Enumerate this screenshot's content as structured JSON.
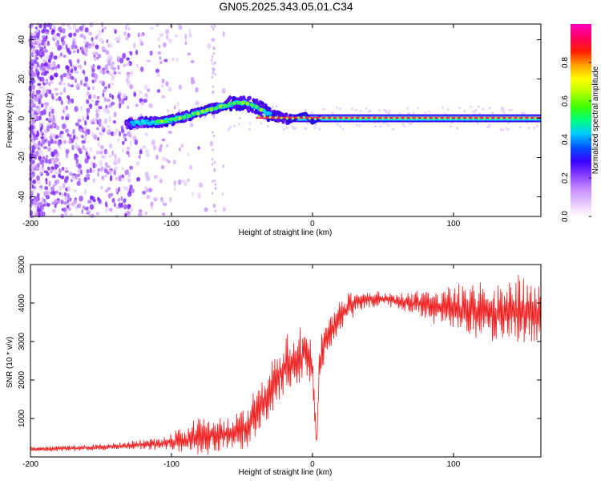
{
  "title": "GN05.2025.343.05.01.C34",
  "chart_data": [
    {
      "type": "heatmap",
      "description_of_series": "spectrogram",
      "xlabel": "Height of straight line (km)",
      "ylabel": "Frequency (Hz)",
      "xlim": [
        -200,
        162
      ],
      "ylim": [
        -50,
        48
      ],
      "xticks": [
        -200,
        -100,
        0,
        100
      ],
      "yticks": [
        -40,
        -20,
        0,
        20,
        40
      ],
      "colorbar": {
        "label": "Normalized spectral amplitude",
        "range": [
          0,
          1
        ],
        "ticks": [
          0.0,
          0.2,
          0.4,
          0.6,
          0.8
        ],
        "colors": [
          "#ffffff",
          "#e4c6ff",
          "#c78cff",
          "#8a3dff",
          "#3a00ff",
          "#0050ff",
          "#00c8ff",
          "#00ff80",
          "#40ff00",
          "#b0ff00",
          "#ffff00",
          "#ffa000",
          "#ff2000",
          "#ff0060",
          "#ff00c0"
        ]
      },
      "ridge": {
        "x": [
          -130,
          -120,
          -110,
          -100,
          -90,
          -80,
          -70,
          -60,
          -50,
          -45,
          -40,
          -35,
          -30,
          -25,
          -20,
          -15,
          -10,
          -5,
          0,
          5,
          10,
          20,
          160
        ],
        "freq": [
          -3,
          -2,
          -2,
          -1,
          1,
          3,
          5,
          7,
          8,
          7,
          6,
          4,
          2,
          1,
          0,
          -1,
          1,
          2,
          -2,
          0,
          0,
          0,
          0
        ]
      }
    },
    {
      "type": "line",
      "xlabel": "Height of straight line (km)",
      "ylabel": "SNR (10 * v/v)",
      "xlim": [
        -200,
        162
      ],
      "ylim": [
        0,
        5000
      ],
      "xticks": [
        -200,
        -100,
        0,
        100
      ],
      "yticks": [
        1000,
        2000,
        3000,
        4000,
        5000
      ],
      "color": "#ee2222",
      "envelope": {
        "x": [
          -200,
          -150,
          -120,
          -100,
          -90,
          -80,
          -70,
          -60,
          -50,
          -40,
          -30,
          -20,
          -10,
          -5,
          0,
          3,
          5,
          10,
          20,
          30,
          40,
          50,
          60,
          70,
          80,
          90,
          100,
          110,
          120,
          130,
          140,
          150,
          162
        ],
        "mean": [
          200,
          250,
          320,
          380,
          450,
          550,
          650,
          600,
          700,
          1100,
          1700,
          2300,
          2600,
          2700,
          2300,
          300,
          2500,
          3100,
          3700,
          4000,
          4100,
          4100,
          4050,
          4000,
          3950,
          3900,
          3850,
          3800,
          3800,
          3800,
          3800,
          3800,
          3700
        ],
        "spread": [
          60,
          80,
          120,
          200,
          350,
          450,
          500,
          400,
          500,
          600,
          700,
          700,
          800,
          700,
          600,
          100,
          600,
          500,
          400,
          300,
          200,
          200,
          200,
          250,
          350,
          450,
          550,
          650,
          700,
          750,
          800,
          800,
          700
        ]
      },
      "annotations": [
        "sharp dip near x = 3 km to about 300"
      ]
    }
  ]
}
